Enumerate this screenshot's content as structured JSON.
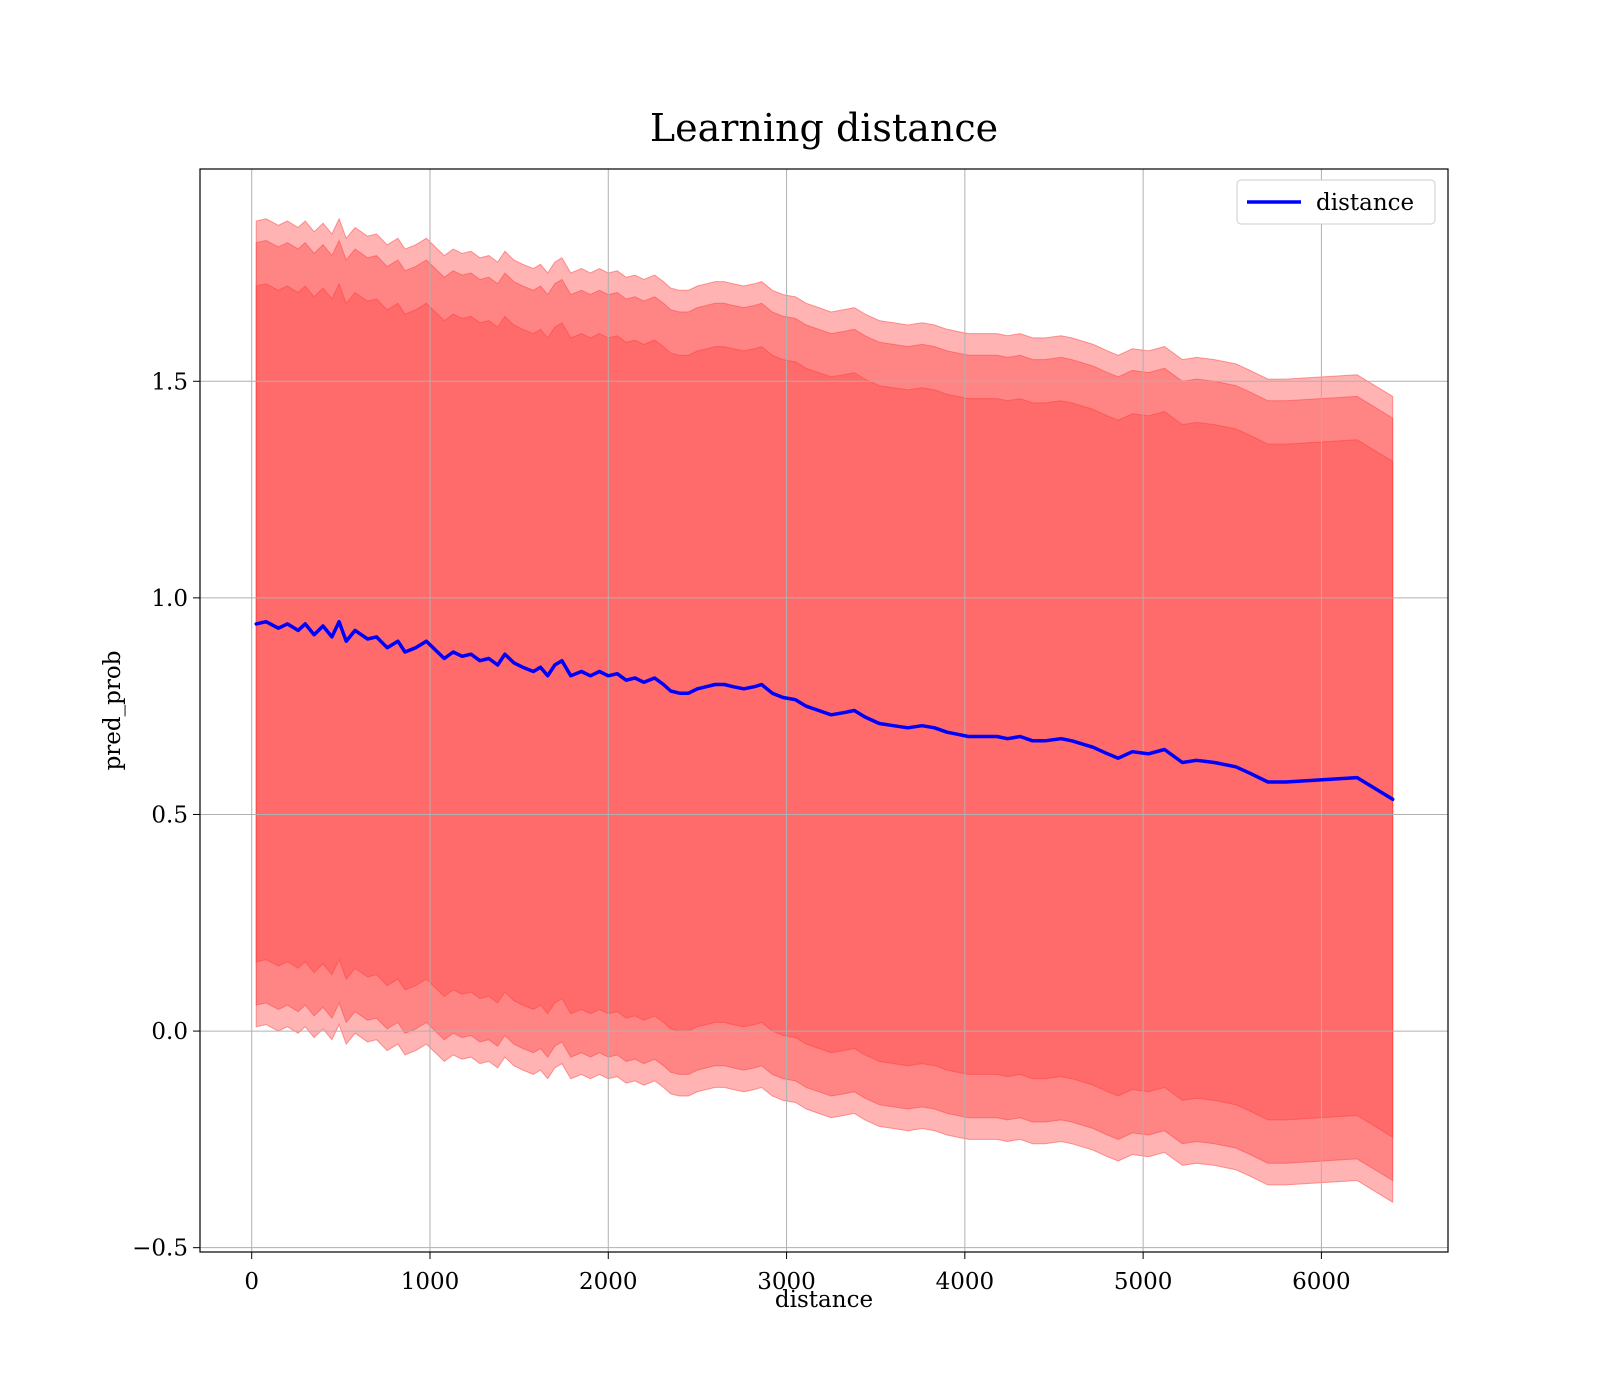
{
  "chart_data": {
    "type": "area",
    "title": "Learning distance",
    "xlabel": "distance",
    "ylabel": "pred_prob",
    "xlim": [
      -290,
      6710
    ],
    "ylim": [
      -0.51,
      1.99
    ],
    "grid": true,
    "legend": {
      "position": "top-right",
      "entries": [
        "distance"
      ]
    },
    "xticks": [
      0,
      1000,
      2000,
      3000,
      4000,
      5000,
      6000
    ],
    "xtick_labels": [
      "0",
      "1000",
      "2000",
      "3000",
      "4000",
      "5000",
      "6000"
    ],
    "yticks": [
      -0.5,
      0.0,
      0.5,
      1.0,
      1.5
    ],
    "ytick_labels": [
      "−0.5",
      "0.0",
      "0.5",
      "1.0",
      "1.5"
    ],
    "band_offsets": [
      0.78,
      0.88,
      0.93
    ],
    "colors": {
      "line": "#0000ff",
      "band": "#ff4040",
      "band_opacity": 0.4,
      "grid": "#b0b0b0"
    },
    "series": [
      {
        "name": "distance",
        "x": [
          25,
          80,
          150,
          200,
          260,
          300,
          350,
          400,
          450,
          490,
          530,
          580,
          650,
          700,
          760,
          820,
          860,
          920,
          980,
          1030,
          1080,
          1130,
          1180,
          1230,
          1280,
          1330,
          1380,
          1420,
          1470,
          1520,
          1580,
          1620,
          1660,
          1700,
          1740,
          1790,
          1850,
          1900,
          1950,
          2000,
          2050,
          2100,
          2150,
          2200,
          2260,
          2310,
          2350,
          2400,
          2450,
          2500,
          2550,
          2600,
          2650,
          2700,
          2760,
          2820,
          2860,
          2920,
          2980,
          3050,
          3110,
          3180,
          3250,
          3320,
          3380,
          3440,
          3520,
          3600,
          3680,
          3760,
          3830,
          3900,
          3960,
          4020,
          4100,
          4180,
          4240,
          4310,
          4380,
          4450,
          4540,
          4600,
          4720,
          4800,
          4860,
          4940,
          5030,
          5120,
          5220,
          5300,
          5400,
          5520,
          5600,
          5700,
          5800,
          6200,
          6400
        ],
        "values": [
          0.94,
          0.945,
          0.93,
          0.94,
          0.925,
          0.94,
          0.915,
          0.935,
          0.91,
          0.945,
          0.9,
          0.925,
          0.905,
          0.91,
          0.885,
          0.9,
          0.875,
          0.885,
          0.9,
          0.88,
          0.86,
          0.875,
          0.865,
          0.87,
          0.855,
          0.86,
          0.845,
          0.87,
          0.85,
          0.84,
          0.83,
          0.84,
          0.82,
          0.845,
          0.855,
          0.82,
          0.83,
          0.82,
          0.83,
          0.82,
          0.825,
          0.81,
          0.815,
          0.805,
          0.815,
          0.8,
          0.785,
          0.78,
          0.78,
          0.79,
          0.795,
          0.8,
          0.8,
          0.795,
          0.79,
          0.795,
          0.8,
          0.78,
          0.77,
          0.765,
          0.75,
          0.74,
          0.73,
          0.735,
          0.74,
          0.725,
          0.71,
          0.705,
          0.7,
          0.705,
          0.7,
          0.69,
          0.685,
          0.68,
          0.68,
          0.68,
          0.675,
          0.68,
          0.67,
          0.67,
          0.675,
          0.67,
          0.655,
          0.64,
          0.63,
          0.645,
          0.64,
          0.65,
          0.62,
          0.625,
          0.62,
          0.61,
          0.595,
          0.575,
          0.575,
          0.585,
          0.535
        ]
      }
    ]
  }
}
